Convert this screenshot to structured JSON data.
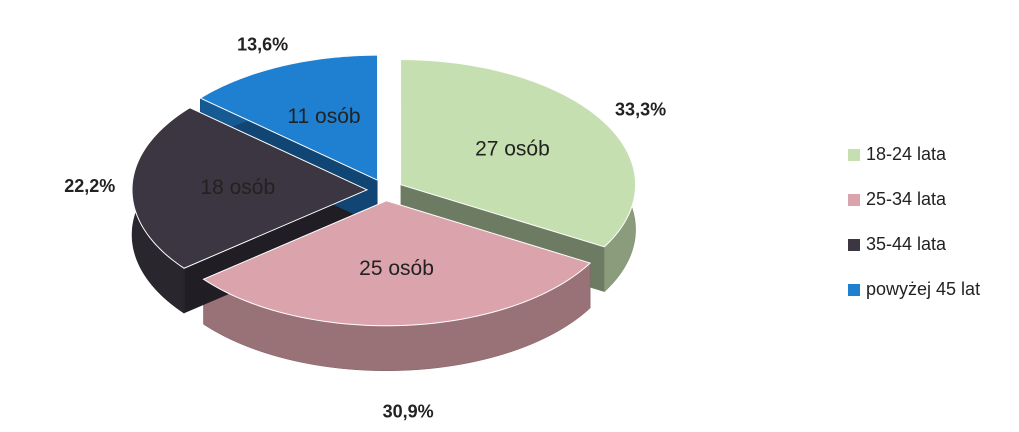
{
  "chart_data": {
    "type": "pie3d",
    "categories": [
      "18-24 lata",
      "25-34 lata",
      "35-44 lata",
      "powyżej 45 lat"
    ],
    "values": [
      33.3,
      30.9,
      22.2,
      13.6
    ],
    "value_labels": [
      "33,3%",
      "30,9%",
      "22,2%",
      "13,6%"
    ],
    "count_labels": [
      "27 osób",
      "25 osób",
      "18 osób",
      "11 osób"
    ],
    "colors": [
      "#c5dfb1",
      "#dba3ab",
      "#3b3641",
      "#1f80d2"
    ],
    "legend": "right"
  }
}
